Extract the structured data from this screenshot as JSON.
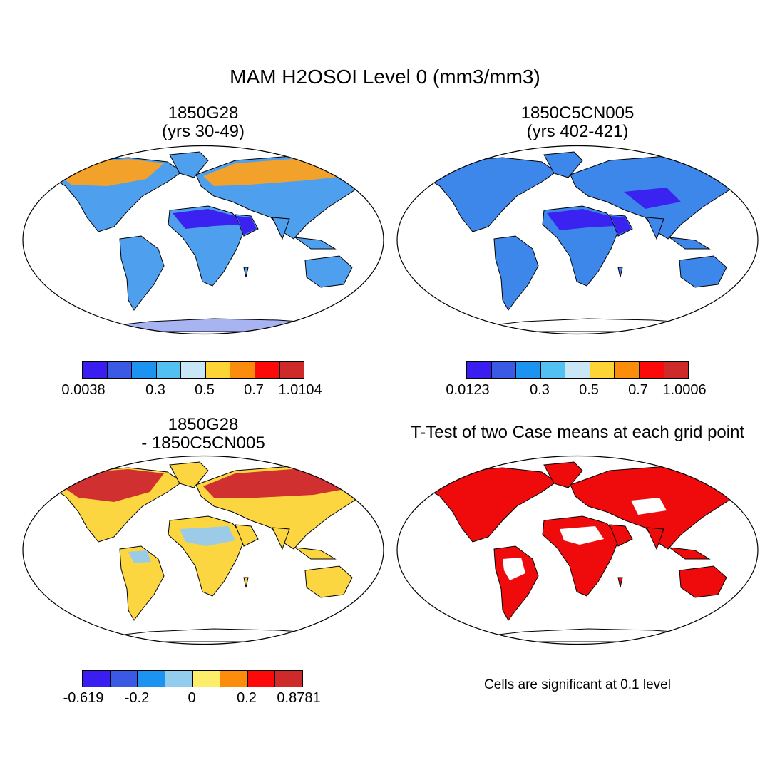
{
  "main_title": "MAM H2OSOI Level 0 (mm3/mm3)",
  "panels": [
    {
      "title_line1": "1850G28",
      "title_line2": "(yrs 30-49)"
    },
    {
      "title_line1": "1850C5CN005",
      "title_line2": "(yrs 402-421)"
    },
    {
      "title_line1": "1850G28",
      "title_line2": "- 1850C5CN005"
    },
    {
      "title_line1": "T-Test of two Case means at each grid point",
      "title_line2": ""
    }
  ],
  "colorbars": {
    "cb1": {
      "colors": [
        "#3a1df0",
        "#3a5ae6",
        "#1c93f0",
        "#52c1f2",
        "#c8e6f5",
        "#fcd535",
        "#fc8c0c",
        "#fc0a0a",
        "#cf2a2a"
      ],
      "labels": [
        "0.0038",
        "0.3",
        "0.5",
        "0.7",
        "1.0104"
      ]
    },
    "cb2": {
      "colors": [
        "#3a1df0",
        "#3a5ae6",
        "#1c93f0",
        "#52c1f2",
        "#c8e6f5",
        "#fcd535",
        "#fc8c0c",
        "#fc0a0a",
        "#cf2a2a"
      ],
      "labels": [
        "0.0123",
        "0.3",
        "0.5",
        "0.7",
        "1.0006"
      ]
    },
    "cb3": {
      "colors": [
        "#3a1df0",
        "#3a5ae6",
        "#1c93f0",
        "#93cdee",
        "#fcee6a",
        "#fc8c0c",
        "#fc0a0a",
        "#cf2a2a"
      ],
      "labels": [
        "-0.619",
        "-0.2",
        "0",
        "0.2",
        "0.8781"
      ]
    }
  },
  "significance_note": "Cells are significant at 0.1 level",
  "map_fill_colors": {
    "panel1_land": "#4f9fef",
    "panel1_north": "#f2a12a",
    "panel1_desert": "#3a22f0",
    "panel2_land": "#3d86ea",
    "panel2_desert": "#3a22f0",
    "panel3_land": "#fbd640",
    "panel3_north": "#d03030",
    "panel3_wet": "#9ccbe8",
    "panel4_land": "#ef0b0b",
    "panel4_white": "#ffffff",
    "antarctica1": "#a8b4f2"
  }
}
